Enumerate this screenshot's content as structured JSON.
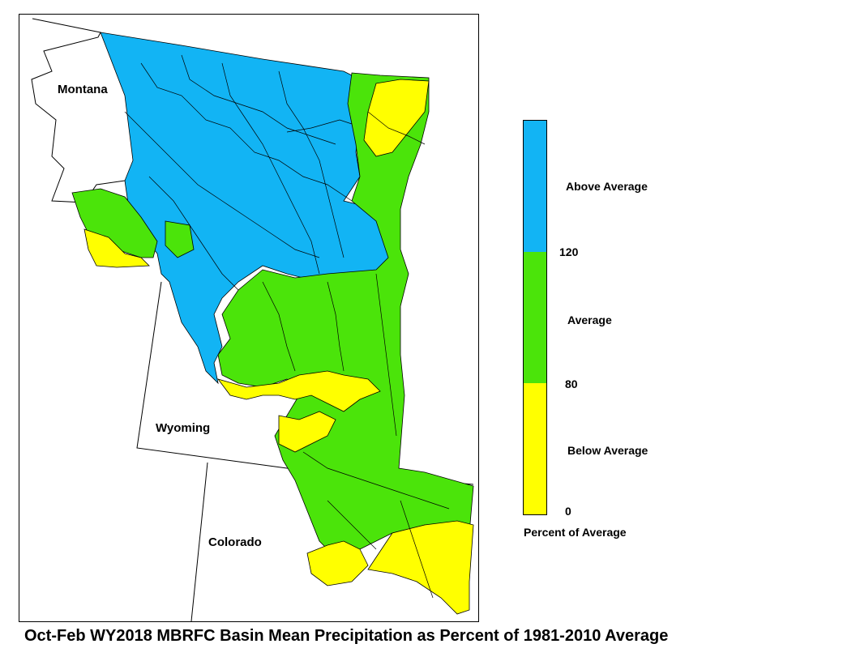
{
  "map": {
    "state_labels": [
      "Montana",
      "Wyoming",
      "Colorado"
    ],
    "basin_lines_color": "#000000"
  },
  "legend": {
    "title": "Percent of Average",
    "categories": [
      {
        "label": "Above Average",
        "color": "#12b4f4"
      },
      {
        "label": "Average",
        "color": "#4be40a"
      },
      {
        "label": "Below Average",
        "color": "#ffff00"
      }
    ],
    "ticks": [
      "120",
      "80",
      "0"
    ]
  },
  "caption": "Oct-Feb WY2018 MBRFC Basin Mean Precipitation as Percent of 1981-2010 Average"
}
